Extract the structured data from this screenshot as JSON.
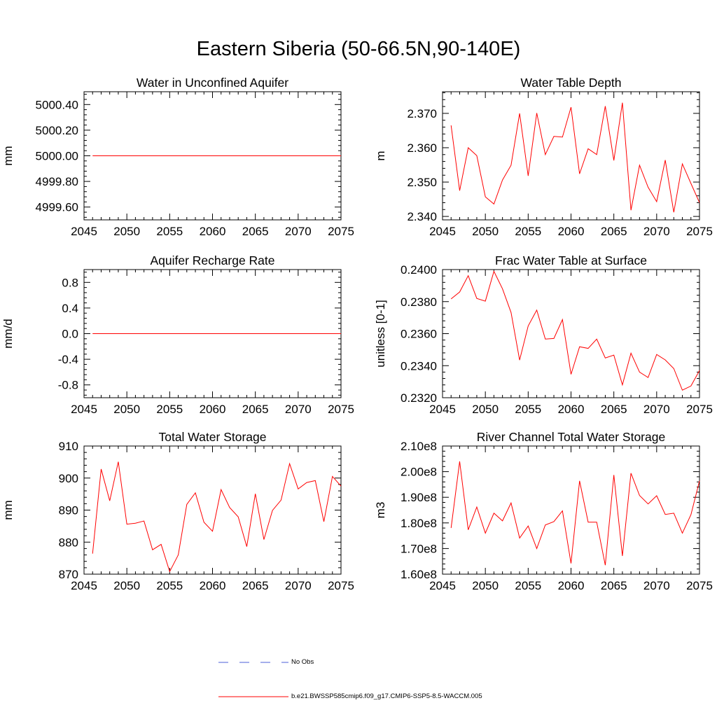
{
  "title": "Eastern Siberia (50-66.5N,90-140E)",
  "colors": {
    "model": "#ff0000",
    "obs": "#4b5fd8",
    "axis": "#000000"
  },
  "legend": [
    {
      "label": "No Obs",
      "style": "dashed",
      "color": "#4b5fd8"
    },
    {
      "label": "b.e21.BWSSP585cmip6.f09_g17.CMIP6-SSP5-8.5-WACCM.005",
      "style": "solid",
      "color": "#ff0000"
    }
  ],
  "chart_data": [
    {
      "type": "line",
      "title": "Water in Unconfined Aquifer",
      "ylabel": "mm",
      "xlim": [
        2045,
        2075
      ],
      "ylim": [
        4999.5,
        5000.5
      ],
      "xticks": [
        "2045",
        "2050",
        "2055",
        "2060",
        "2065",
        "2070",
        "2075"
      ],
      "yticks": [
        4999.6,
        4999.8,
        5000.0,
        5000.2,
        5000.4
      ],
      "ytick_labels": [
        "4999.60",
        "4999.80",
        "5000.00",
        "5000.20",
        "5000.40"
      ],
      "series": [
        {
          "x": [
            2046,
            2047,
            2048,
            2049,
            2050,
            2051,
            2052,
            2053,
            2054,
            2055,
            2056,
            2057,
            2058,
            2059,
            2060,
            2061,
            2062,
            2063,
            2064,
            2065,
            2066,
            2067,
            2068,
            2069,
            2070,
            2071,
            2072,
            2073,
            2074,
            2075
          ],
          "values": [
            5000,
            5000,
            5000,
            5000,
            5000,
            5000,
            5000,
            5000,
            5000,
            5000,
            5000,
            5000,
            5000,
            5000,
            5000,
            5000,
            5000,
            5000,
            5000,
            5000,
            5000,
            5000,
            5000,
            5000,
            5000,
            5000,
            5000,
            5000,
            5000,
            5000
          ]
        }
      ]
    },
    {
      "type": "line",
      "title": "Water Table Depth",
      "ylabel": "m",
      "xlim": [
        2045,
        2075
      ],
      "ylim": [
        2.339,
        2.3763
      ],
      "xticks": [
        "2045",
        "2050",
        "2055",
        "2060",
        "2065",
        "2070",
        "2075"
      ],
      "yticks": [
        2.34,
        2.35,
        2.36,
        2.37
      ],
      "ytick_labels": [
        "2.340",
        "2.350",
        "2.360",
        "2.370"
      ],
      "series": [
        {
          "x": [
            2046,
            2047,
            2048,
            2049,
            2050,
            2051,
            2052,
            2053,
            2054,
            2055,
            2056,
            2057,
            2058,
            2059,
            2060,
            2061,
            2062,
            2063,
            2064,
            2065,
            2066,
            2067,
            2068,
            2069,
            2070,
            2071,
            2072,
            2073,
            2074,
            2075
          ],
          "values": [
            2.3665,
            2.3475,
            2.36,
            2.3577,
            2.3457,
            2.3436,
            2.3506,
            2.3549,
            2.37,
            2.3518,
            2.3701,
            2.358,
            2.3633,
            2.3631,
            2.3718,
            2.3524,
            2.3597,
            2.358,
            2.3721,
            2.3563,
            2.3731,
            2.3418,
            2.3549,
            2.3485,
            2.3443,
            2.3564,
            2.3412,
            2.3553,
            2.3496,
            2.344
          ]
        }
      ]
    },
    {
      "type": "line",
      "title": "Aquifer Recharge Rate",
      "ylabel": "mm/d",
      "xlim": [
        2045,
        2075
      ],
      "ylim": [
        -1.0,
        1.0
      ],
      "xticks": [
        "2045",
        "2050",
        "2055",
        "2060",
        "2065",
        "2070",
        "2075"
      ],
      "yticks": [
        -0.8,
        -0.4,
        0.0,
        0.4,
        0.8
      ],
      "ytick_labels": [
        "-0.8",
        "-0.4",
        "0.0",
        "0.4",
        "0.8"
      ],
      "series": [
        {
          "x": [
            2046,
            2047,
            2048,
            2049,
            2050,
            2051,
            2052,
            2053,
            2054,
            2055,
            2056,
            2057,
            2058,
            2059,
            2060,
            2061,
            2062,
            2063,
            2064,
            2065,
            2066,
            2067,
            2068,
            2069,
            2070,
            2071,
            2072,
            2073,
            2074,
            2075
          ],
          "values": [
            0,
            0,
            0,
            0,
            0,
            0,
            0,
            0,
            0,
            0,
            0,
            0,
            0,
            0,
            0,
            0,
            0,
            0,
            0,
            0,
            0,
            0,
            0,
            0,
            0,
            0,
            0,
            0,
            0,
            0
          ]
        }
      ]
    },
    {
      "type": "line",
      "title": "Frac Water Table at Surface",
      "ylabel": "unitless [0-1]",
      "xlim": [
        2045,
        2075
      ],
      "ylim": [
        0.232,
        0.24
      ],
      "xticks": [
        "2045",
        "2050",
        "2055",
        "2060",
        "2065",
        "2070",
        "2075"
      ],
      "yticks": [
        0.232,
        0.234,
        0.236,
        0.238,
        0.24
      ],
      "ytick_labels": [
        "0.2320",
        "0.2340",
        "0.2360",
        "0.2380",
        "0.2400"
      ],
      "series": [
        {
          "x": [
            2046,
            2047,
            2048,
            2049,
            2050,
            2051,
            2052,
            2053,
            2054,
            2055,
            2056,
            2057,
            2058,
            2059,
            2060,
            2061,
            2062,
            2063,
            2064,
            2065,
            2066,
            2067,
            2068,
            2069,
            2070,
            2071,
            2072,
            2073,
            2074,
            2075
          ],
          "values": [
            0.23817,
            0.2386,
            0.23962,
            0.2382,
            0.23803,
            0.23989,
            0.2388,
            0.23732,
            0.23435,
            0.23648,
            0.23747,
            0.23566,
            0.2357,
            0.23688,
            0.23346,
            0.23518,
            0.23508,
            0.23566,
            0.23448,
            0.23466,
            0.2328,
            0.23478,
            0.2336,
            0.23326,
            0.2347,
            0.23436,
            0.23382,
            0.23247,
            0.23273,
            0.2337
          ]
        }
      ]
    },
    {
      "type": "line",
      "title": "Total Water Storage",
      "ylabel": "mm",
      "xlim": [
        2045,
        2075
      ],
      "ylim": [
        870,
        910
      ],
      "xticks": [
        "2045",
        "2050",
        "2055",
        "2060",
        "2065",
        "2070",
        "2075"
      ],
      "yticks": [
        870,
        880,
        890,
        900,
        910
      ],
      "ytick_labels": [
        "870",
        "880",
        "890",
        "900",
        "910"
      ],
      "series": [
        {
          "x": [
            2046,
            2047,
            2048,
            2049,
            2050,
            2051,
            2052,
            2053,
            2054,
            2055,
            2056,
            2057,
            2058,
            2059,
            2060,
            2061,
            2062,
            2063,
            2064,
            2065,
            2066,
            2067,
            2068,
            2069,
            2070,
            2071,
            2072,
            2073,
            2074,
            2075
          ],
          "values": [
            876.4,
            902.8,
            892.9,
            905.1,
            885.6,
            885.9,
            886.6,
            877.6,
            879.3,
            870.8,
            876.0,
            891.8,
            895.4,
            886.2,
            883.4,
            896.4,
            890.8,
            887.9,
            878.6,
            895.1,
            880.8,
            889.9,
            893.1,
            904.5,
            896.6,
            898.6,
            899.2,
            886.4,
            900.5,
            897.5
          ]
        }
      ]
    },
    {
      "type": "line",
      "title": "River Channel Total Water Storage",
      "ylabel": "m3",
      "xlim": [
        2045,
        2075
      ],
      "ylim": [
        160000000,
        210000000
      ],
      "xticks": [
        "2045",
        "2050",
        "2055",
        "2060",
        "2065",
        "2070",
        "2075"
      ],
      "yticks": [
        160000000,
        170000000,
        180000000,
        190000000,
        200000000,
        210000000
      ],
      "ytick_labels": [
        "1.60e8",
        "1.70e8",
        "1.80e8",
        "1.90e8",
        "2.00e8",
        "2.10e8"
      ],
      "series": [
        {
          "x": [
            2046,
            2047,
            2048,
            2049,
            2050,
            2051,
            2052,
            2053,
            2054,
            2055,
            2056,
            2057,
            2058,
            2059,
            2060,
            2061,
            2062,
            2063,
            2064,
            2065,
            2066,
            2067,
            2068,
            2069,
            2070,
            2071,
            2072,
            2073,
            2074,
            2075
          ],
          "values": [
            178000000,
            204000000,
            177300000,
            186200000,
            176000000,
            183800000,
            180800000,
            187800000,
            174100000,
            178800000,
            170000000,
            179200000,
            180500000,
            184700000,
            164200000,
            196400000,
            180300000,
            180300000,
            163500000,
            198700000,
            167100000,
            199400000,
            190700000,
            187400000,
            190600000,
            183300000,
            183800000,
            176000000,
            183200000,
            196400000
          ]
        }
      ]
    }
  ]
}
